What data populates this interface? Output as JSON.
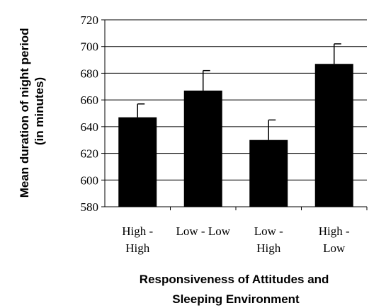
{
  "chart_data": {
    "type": "bar",
    "categories": [
      [
        "High -",
        "High"
      ],
      [
        "Low - Low"
      ],
      [
        "Low -",
        "High"
      ],
      [
        "High -",
        "Low"
      ]
    ],
    "values": [
      647,
      667,
      630,
      687
    ],
    "errors": [
      10,
      15,
      15,
      15
    ],
    "ylim": [
      580,
      720
    ],
    "yticks": [
      580,
      600,
      620,
      640,
      660,
      680,
      700,
      720
    ],
    "grid": true,
    "ylabel": [
      "Mean duration of night period",
      "(in minutes)"
    ],
    "xlabel": [
      "Responsiveness of Attitudes and",
      "Sleeping Environment"
    ],
    "colors": {
      "bar": "#000000",
      "grid": "#000000",
      "axis": "#000000"
    }
  }
}
